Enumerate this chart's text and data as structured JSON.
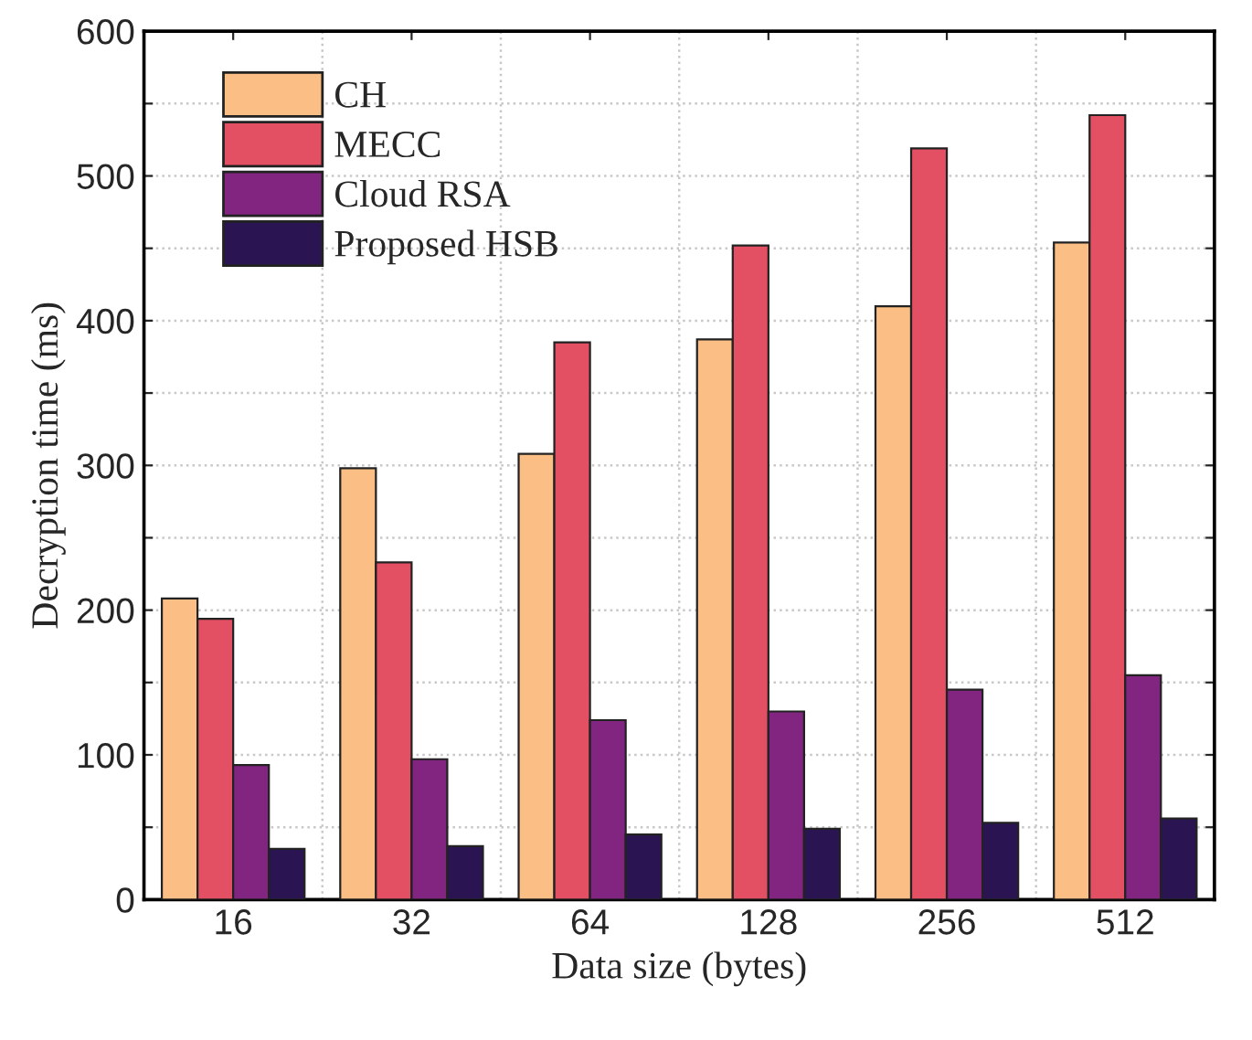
{
  "chart_data": {
    "type": "bar",
    "xlabel": "Data size (bytes)",
    "ylabel": "Decryption time (ms)",
    "categories": [
      "16",
      "32",
      "64",
      "128",
      "256",
      "512"
    ],
    "series": [
      {
        "name": "CH",
        "color": "#fbbf85",
        "values": [
          208,
          298,
          308,
          387,
          410,
          454
        ]
      },
      {
        "name": "MECC",
        "color": "#e34f63",
        "values": [
          194,
          233,
          385,
          452,
          519,
          542
        ]
      },
      {
        "name": "Cloud RSA",
        "color": "#812581",
        "values": [
          93,
          97,
          124,
          130,
          145,
          155
        ]
      },
      {
        "name": "Proposed HSB",
        "color": "#2a1552",
        "values": [
          35,
          37,
          45,
          49,
          53,
          56
        ]
      }
    ],
    "ylim": [
      0,
      600
    ],
    "yticks": [
      0,
      {
        "value": 50,
        "label": null
      },
      100,
      {
        "value": 150,
        "label": null
      },
      200,
      {
        "value": 250,
        "label": null
      },
      300,
      {
        "value": 350,
        "label": null
      },
      400,
      {
        "value": 450,
        "label": null
      },
      500,
      {
        "value": 550,
        "label": null
      },
      600
    ],
    "grid": true,
    "legend": "top left"
  }
}
